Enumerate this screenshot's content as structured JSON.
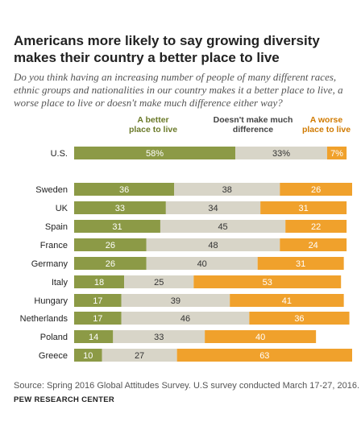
{
  "header": {
    "title": "Americans more likely to say growing diversity makes their country a better place to live",
    "subtitle": "Do you think having an increasing number of people of many different races, ethnic groups and nationalities in our country makes it a better place to live, a worse place to live or doesn't make much difference either way?"
  },
  "footer": {
    "source": "Source: Spring 2016 Global Attitudes Survey. U.S survey conducted March 17-27, 2016.",
    "org": "PEW RESEARCH CENTER"
  },
  "colors": {
    "better": "#8C9A46",
    "no_difference": "#D8D5C8",
    "worse": "#F0A12C"
  },
  "chart_data": {
    "type": "bar",
    "orientation": "horizontal",
    "stacked": true,
    "series": [
      {
        "name": "A better place to live",
        "values": [
          58,
          36,
          33,
          31,
          26,
          26,
          18,
          17,
          17,
          14,
          10
        ]
      },
      {
        "name": "Doesn't make much difference",
        "values": [
          33,
          38,
          34,
          45,
          48,
          40,
          25,
          39,
          46,
          33,
          27
        ]
      },
      {
        "name": "A worse place to live",
        "values": [
          7,
          26,
          31,
          22,
          24,
          31,
          53,
          41,
          36,
          40,
          63
        ]
      }
    ],
    "categories": [
      "U.S.",
      "Sweden",
      "UK",
      "Spain",
      "France",
      "Germany",
      "Italy",
      "Hungary",
      "Netherlands",
      "Poland",
      "Greece"
    ],
    "value_suffix_first_row": "%",
    "legend_placement": "top",
    "grid": false
  }
}
